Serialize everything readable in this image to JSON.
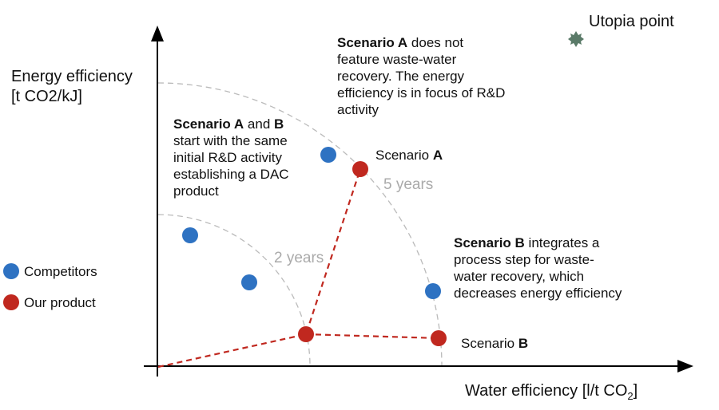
{
  "y_axis_label": {
    "line1": "Energy efficiency",
    "line2": "[t CO2/kJ]"
  },
  "x_axis_label": {
    "main": "Water efficiency  [l/t CO",
    "sub": "2",
    "end": "]"
  },
  "utopia_label": "Utopia point",
  "arcs": {
    "inner": "2 years",
    "outer": "5 years"
  },
  "annotations": {
    "common": {
      "bold1": "Scenario A",
      "mid": " and ",
      "bold2": "B",
      "lines": [
        "start with the same",
        "initial R&D activity",
        "establishing a DAC",
        "product"
      ]
    },
    "scenario_a": {
      "bold": "Scenario A",
      "rest1": " does not",
      "lines": [
        "feature waste-water",
        "recovery. The energy",
        "efficiency is in focus of R&D",
        "activity"
      ]
    },
    "scenario_b": {
      "bold": "Scenario B",
      "rest1": " integrates a",
      "lines": [
        "process step for waste-",
        "water recovery, which",
        "decreases energy efficiency"
      ]
    }
  },
  "point_labels": {
    "a": {
      "text": "Scenario ",
      "bold": "A"
    },
    "b": {
      "text": "Scenario ",
      "bold": "B"
    }
  },
  "legend": [
    {
      "label": "Competitors",
      "color": "#2e72c2"
    },
    {
      "label": "Our product",
      "color": "#c0281f"
    }
  ],
  "colors": {
    "competitor": "#2e72c2",
    "product": "#c0281f",
    "utopia": "#5a7a68",
    "arc": "#bbbbbb"
  }
}
